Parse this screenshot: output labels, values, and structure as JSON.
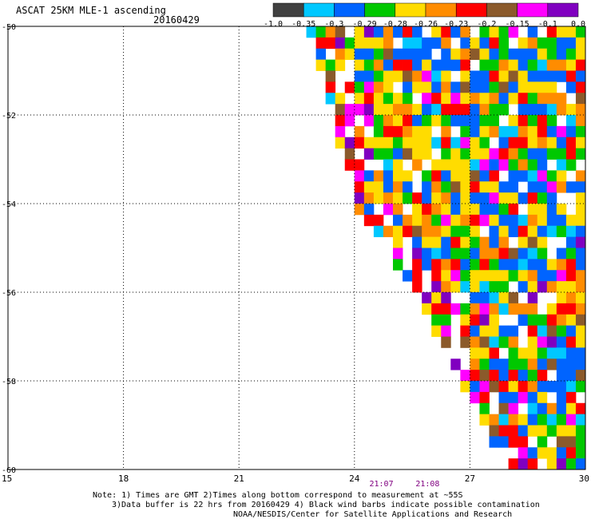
{
  "header": {
    "title": "ASCAT 25KM MLE-1 ascending",
    "date": "20160429"
  },
  "colorbar": {
    "colors": [
      "#404040",
      "#00c8ff",
      "#0064ff",
      "#00c800",
      "#ffdc00",
      "#ff8c00",
      "#ff0000",
      "#8b5a2b",
      "#ff00ff",
      "#8000c0"
    ],
    "labels": [
      "-1.0",
      "-0.35",
      "-0.3",
      "-0.29",
      "-0.28",
      "-0.26",
      "-0.23",
      "-0.2",
      "-0.15",
      "-0.1",
      "0.0"
    ]
  },
  "chart_data": {
    "type": "heatmap",
    "title": "ASCAT 25KM MLE-1 ascending",
    "xlabel": "",
    "ylabel": "",
    "xlim": [
      15,
      30
    ],
    "ylim": [
      -60,
      -50
    ],
    "x_ticks": [
      "15",
      "18",
      "21",
      "24",
      "27",
      "30"
    ],
    "y_ticks": [
      "-50",
      "-52",
      "-54",
      "-56",
      "-58",
      "-60"
    ],
    "grid": true,
    "time_labels": [
      {
        "x": 24.7,
        "label": "21:07"
      },
      {
        "x": 25.9,
        "label": "21:08"
      }
    ],
    "swath": {
      "cell_deg": 0.25,
      "west_edge": [
        [
          22.8,
          -50
        ],
        [
          24.0,
          -54
        ],
        [
          25.6,
          -56
        ],
        [
          28.0,
          -60
        ]
      ],
      "east_limit": 30,
      "missing_near": [
        27,
        -56.5
      ]
    }
  },
  "notes": {
    "line1": "Note: 1) Times are GMT 2)Times along bottom correspond to measurement at ~55S",
    "line2": "3)Data buffer is 22 hrs from 20160429 4) Black wind barbs indicate possible contamination",
    "line3": "NOAA/NESDIS/Center for Satellite Applications and Research"
  }
}
